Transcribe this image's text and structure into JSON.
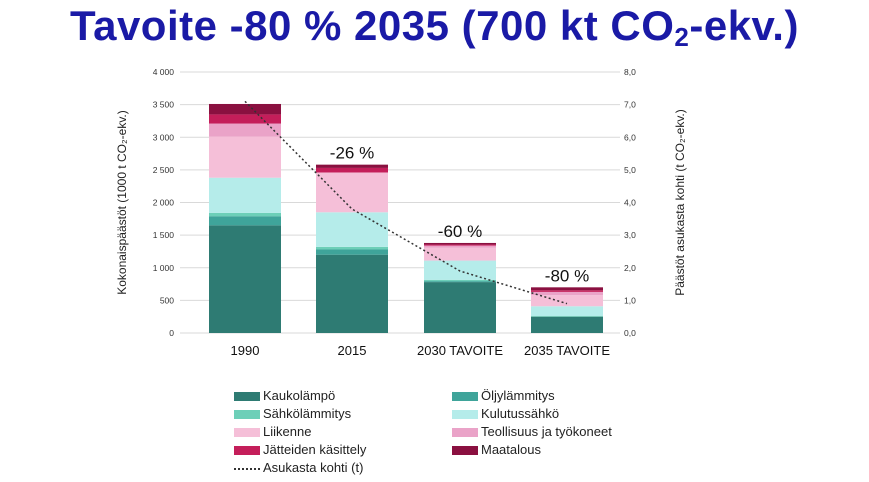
{
  "title": {
    "main": "Tavoite -80 % 2035 (700 kt CO",
    "sub": "2",
    "tail": "-ekv.)"
  },
  "chart_data": {
    "type": "bar",
    "stacked": true,
    "categories": [
      "1990",
      "2015",
      "2030 TAVOITE",
      "2035 TAVOITE"
    ],
    "ylabel_left": "Kokonaispäästöt (1000 t CO₂-ekv.)",
    "ylabel_right": "Päästöt asukasta kohti (t CO₂-ekv.)",
    "ylim_left": [
      0,
      4000
    ],
    "ylim_right": [
      0,
      8
    ],
    "yticks_left": [
      "0",
      "500",
      "1 000",
      "1 500",
      "2 000",
      "2 500",
      "3 000",
      "3 500",
      "4 000"
    ],
    "yticks_right": [
      "0,0",
      "1,0",
      "2,0",
      "3,0",
      "4,0",
      "5,0",
      "6,0",
      "7,0",
      "8,0"
    ],
    "grid": true,
    "series": [
      {
        "name": "Kaukolämpö",
        "color": "#2e7b73",
        "values": [
          1650,
          1200,
          780,
          250
        ]
      },
      {
        "name": "Öljylämmitys",
        "color": "#3fa49a",
        "values": [
          140,
          80,
          15,
          0
        ]
      },
      {
        "name": "Sähkölämmitys",
        "color": "#6dcfb8",
        "values": [
          50,
          40,
          20,
          10
        ]
      },
      {
        "name": "Kulutussähkö",
        "color": "#b5ecea",
        "values": [
          540,
          530,
          295,
          150
        ]
      },
      {
        "name": "Liikenne",
        "color": "#f5bfd8",
        "values": [
          630,
          610,
          200,
          170
        ]
      },
      {
        "name": "Teollisuus ja työkoneet",
        "color": "#eaa3c8",
        "values": [
          200,
          0,
          30,
          50
        ]
      },
      {
        "name": "Jätteiden käsittely",
        "color": "#c41e5a",
        "values": [
          140,
          70,
          15,
          25
        ]
      },
      {
        "name": "Maatalous",
        "color": "#8a1040",
        "values": [
          160,
          50,
          25,
          45
        ]
      }
    ],
    "per_capita": {
      "name": "Asukasta kohti (t)",
      "values": [
        7.1,
        3.8,
        1.9,
        0.9
      ]
    },
    "annotations": [
      "",
      "-26 %",
      "-60 %",
      "-80 %"
    ],
    "legend_placement": "bottom"
  }
}
